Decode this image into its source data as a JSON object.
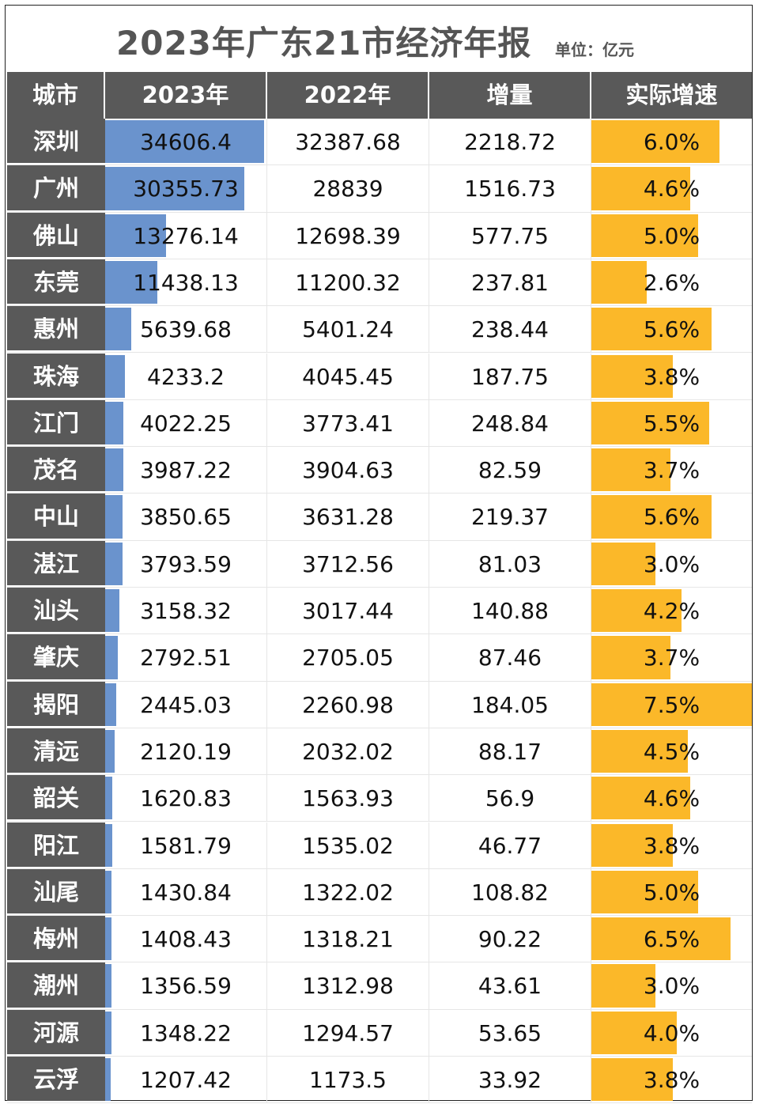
{
  "title": "2023年广东21市经济年报",
  "unit": "单位：亿元",
  "headers": [
    "城市",
    "2023年",
    "2022年",
    "增量",
    "实际增速"
  ],
  "colors": {
    "header_bg": "#595959",
    "gdp_bar": "#6a93cd",
    "rate_bar": "#fbb829"
  },
  "chart_data": {
    "type": "table",
    "title": "2023年广东21市经济年报",
    "columns": [
      "城市",
      "2023年",
      "2022年",
      "增量",
      "实际增速"
    ],
    "rows": [
      {
        "city": "深圳",
        "y2023": "34606.4",
        "y2022": "32387.68",
        "inc": "2218.72",
        "rate": "6.0%",
        "rate_v": 6.0
      },
      {
        "city": "广州",
        "y2023": "30355.73",
        "y2022": "28839",
        "inc": "1516.73",
        "rate": "4.6%",
        "rate_v": 4.6
      },
      {
        "city": "佛山",
        "y2023": "13276.14",
        "y2022": "12698.39",
        "inc": "577.75",
        "rate": "5.0%",
        "rate_v": 5.0
      },
      {
        "city": "东莞",
        "y2023": "11438.13",
        "y2022": "11200.32",
        "inc": "237.81",
        "rate": "2.6%",
        "rate_v": 2.6
      },
      {
        "city": "惠州",
        "y2023": "5639.68",
        "y2022": "5401.24",
        "inc": "238.44",
        "rate": "5.6%",
        "rate_v": 5.6
      },
      {
        "city": "珠海",
        "y2023": "4233.2",
        "y2022": "4045.45",
        "inc": "187.75",
        "rate": "3.8%",
        "rate_v": 3.8
      },
      {
        "city": "江门",
        "y2023": "4022.25",
        "y2022": "3773.41",
        "inc": "248.84",
        "rate": "5.5%",
        "rate_v": 5.5
      },
      {
        "city": "茂名",
        "y2023": "3987.22",
        "y2022": "3904.63",
        "inc": "82.59",
        "rate": "3.7%",
        "rate_v": 3.7
      },
      {
        "city": "中山",
        "y2023": "3850.65",
        "y2022": "3631.28",
        "inc": "219.37",
        "rate": "5.6%",
        "rate_v": 5.6
      },
      {
        "city": "湛江",
        "y2023": "3793.59",
        "y2022": "3712.56",
        "inc": "81.03",
        "rate": "3.0%",
        "rate_v": 3.0
      },
      {
        "city": "汕头",
        "y2023": "3158.32",
        "y2022": "3017.44",
        "inc": "140.88",
        "rate": "4.2%",
        "rate_v": 4.2
      },
      {
        "city": "肇庆",
        "y2023": "2792.51",
        "y2022": "2705.05",
        "inc": "87.46",
        "rate": "3.7%",
        "rate_v": 3.7
      },
      {
        "city": "揭阳",
        "y2023": "2445.03",
        "y2022": "2260.98",
        "inc": "184.05",
        "rate": "7.5%",
        "rate_v": 7.5
      },
      {
        "city": "清远",
        "y2023": "2120.19",
        "y2022": "2032.02",
        "inc": "88.17",
        "rate": "4.5%",
        "rate_v": 4.5
      },
      {
        "city": "韶关",
        "y2023": "1620.83",
        "y2022": "1563.93",
        "inc": "56.9",
        "rate": "4.6%",
        "rate_v": 4.6
      },
      {
        "city": "阳江",
        "y2023": "1581.79",
        "y2022": "1535.02",
        "inc": "46.77",
        "rate": "3.8%",
        "rate_v": 3.8
      },
      {
        "city": "汕尾",
        "y2023": "1430.84",
        "y2022": "1322.02",
        "inc": "108.82",
        "rate": "5.0%",
        "rate_v": 5.0
      },
      {
        "city": "梅州",
        "y2023": "1408.43",
        "y2022": "1318.21",
        "inc": "90.22",
        "rate": "6.5%",
        "rate_v": 6.5
      },
      {
        "city": "潮州",
        "y2023": "1356.59",
        "y2022": "1312.98",
        "inc": "43.61",
        "rate": "3.0%",
        "rate_v": 3.0
      },
      {
        "city": "河源",
        "y2023": "1348.22",
        "y2022": "1294.57",
        "inc": "53.65",
        "rate": "4.0%",
        "rate_v": 4.0
      },
      {
        "city": "云浮",
        "y2023": "1207.42",
        "y2022": "1173.5",
        "inc": "33.92",
        "rate": "3.8%",
        "rate_v": 3.8
      }
    ]
  }
}
